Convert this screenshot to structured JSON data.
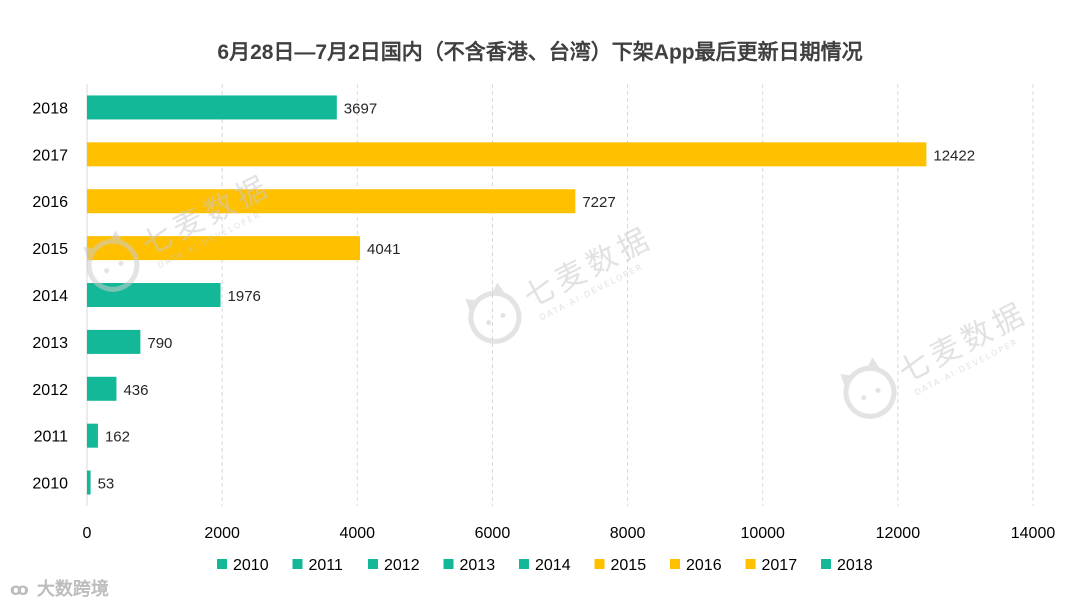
{
  "chart_data": {
    "type": "bar",
    "orientation": "horizontal",
    "title": "6月28日—7月2日国内（不含香港、台湾）下架App最后更新日期情况",
    "categories": [
      "2010",
      "2011",
      "2012",
      "2013",
      "2014",
      "2015",
      "2016",
      "2017",
      "2018"
    ],
    "values": [
      53,
      162,
      436,
      790,
      1976,
      4041,
      7227,
      12422,
      3697
    ],
    "bar_colors": [
      "#13b898",
      "#13b898",
      "#13b898",
      "#13b898",
      "#13b898",
      "#ffc000",
      "#ffc000",
      "#ffc000",
      "#13b898"
    ],
    "data_labels": [
      "53",
      "162",
      "436",
      "790",
      "1976",
      "4041",
      "7227",
      "12422",
      "3697"
    ],
    "xlim": [
      0,
      14000
    ],
    "x_ticks": [
      0,
      2000,
      4000,
      6000,
      8000,
      10000,
      12000,
      14000
    ],
    "x_tick_labels": [
      "0",
      "2000",
      "4000",
      "6000",
      "8000",
      "10000",
      "12000",
      "14000"
    ],
    "grid": "vertical-dashed",
    "legend": {
      "position": "bottom",
      "items": [
        {
          "label": "2010",
          "color": "#13b898"
        },
        {
          "label": "2011",
          "color": "#13b898"
        },
        {
          "label": "2012",
          "color": "#13b898"
        },
        {
          "label": "2013",
          "color": "#13b898"
        },
        {
          "label": "2014",
          "color": "#13b898"
        },
        {
          "label": "2015",
          "color": "#ffc000"
        },
        {
          "label": "2016",
          "color": "#ffc000"
        },
        {
          "label": "2017",
          "color": "#ffc000"
        },
        {
          "label": "2018",
          "color": "#13b898"
        }
      ]
    }
  },
  "watermark": {
    "text": "七麦数据",
    "subtext": "DATA·AI·DEVELOPER",
    "icon": "cat-face-icon"
  },
  "brand": {
    "icon": "weibo-logo-icon",
    "text": "大数跨境"
  }
}
